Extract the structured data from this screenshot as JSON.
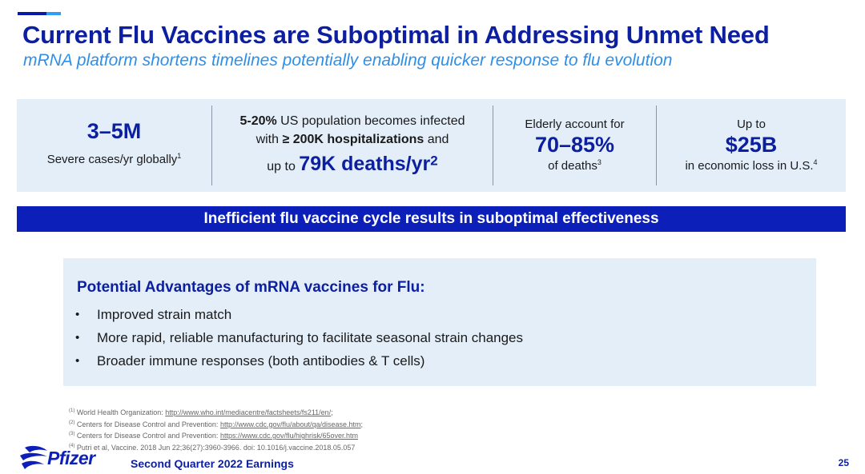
{
  "header": {
    "title": "Current Flu Vaccines are Suboptimal in Addressing Unmet Need",
    "subtitle": "mRNA platform shortens timelines potentially enabling quicker response to flu evolution"
  },
  "stats": {
    "s1": {
      "value": "3–5M",
      "caption": "Severe cases/yr globally",
      "ref": "1"
    },
    "s2": {
      "pct": "5-20%",
      "line1_rest": " US population becomes infected",
      "with": "with ",
      "hosp": "≥ 200K hospitalizations",
      "and": " and",
      "upto": "up to ",
      "deaths": "79K deaths/yr",
      "ref": "2"
    },
    "s3": {
      "lead": "Elderly account for",
      "value": "70–85%",
      "caption": "of deaths",
      "ref": "3"
    },
    "s4": {
      "lead": "Up to",
      "value": "$25B",
      "caption": "in economic loss in U.S.",
      "ref": "4"
    }
  },
  "banner": {
    "text": "Inefficient flu vaccine cycle results in suboptimal effectiveness"
  },
  "advantages": {
    "heading": "Potential Advantages of mRNA vaccines for Flu:",
    "bullet": "•",
    "items": [
      "Improved strain match",
      "More rapid, reliable manufacturing to facilitate seasonal strain changes",
      "Broader immune responses (both antibodies & T cells)"
    ]
  },
  "footnotes": [
    {
      "mark": "(1)",
      "text": " World Health Organization: ",
      "url": "http://www.who.int/mediacentre/factsheets/fs211/en/",
      "tail": ";"
    },
    {
      "mark": "(2)",
      "text": " Centers for Disease Control and Prevention: ",
      "url": "http://www.cdc.gov/flu/about/qa/disease.htm",
      "tail": ";"
    },
    {
      "mark": "(3)",
      "text": " Centers for Disease Control and Prevention: ",
      "url": "https://www.cdc.gov/flu/highrisk/65over.htm",
      "tail": ""
    },
    {
      "mark": "(4)",
      "text": " Putri et al, Vaccine. 2018 Jun 22;36(27):3960-3966. doi: 10.1016/j.vaccine.2018.05.057",
      "url": "",
      "tail": ""
    }
  ],
  "footer": {
    "logo_text": "Pfizer",
    "label": "Second Quarter 2022 Earnings",
    "page": "25"
  },
  "colors": {
    "brand_dark": "#0c1fa0",
    "brand_banner": "#0c1fb8",
    "accent_light": "#2e8fe8",
    "panel": "#e3eef9"
  }
}
